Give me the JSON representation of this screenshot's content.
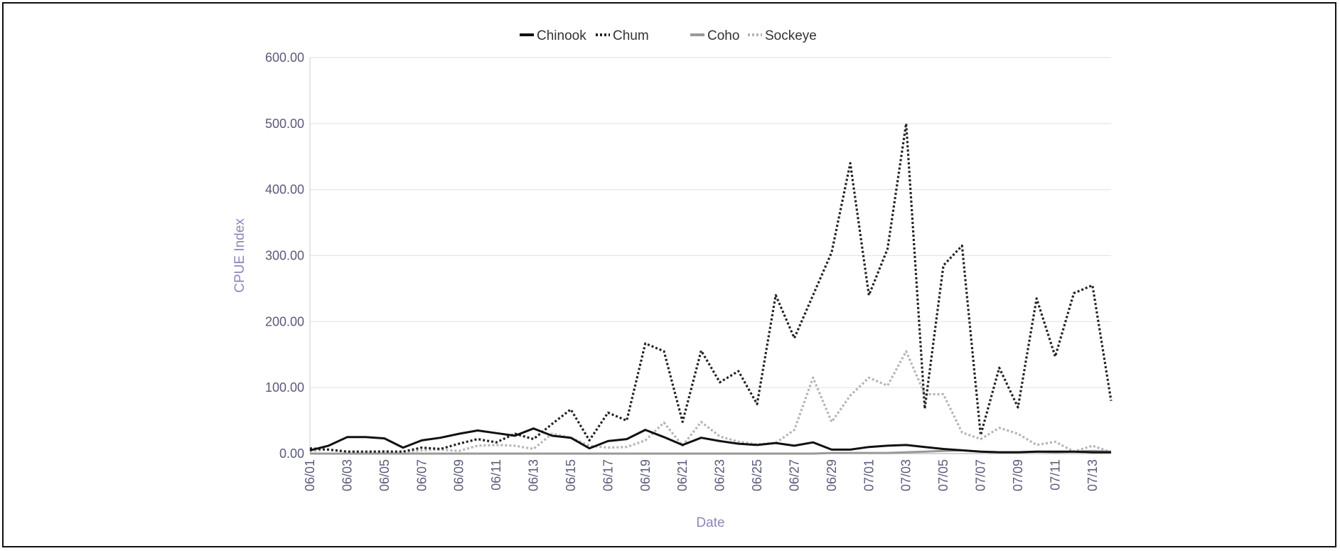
{
  "chart_data": {
    "type": "line",
    "title": "",
    "xlabel": "Date",
    "ylabel": "CPUE Index",
    "ylim": [
      0,
      600
    ],
    "y_ticks": [
      "0.00",
      "100.00",
      "200.00",
      "300.00",
      "400.00",
      "500.00",
      "600.00"
    ],
    "x_tick_labels": [
      "06/01",
      "06/03",
      "06/05",
      "06/07",
      "06/09",
      "06/11",
      "06/13",
      "06/15",
      "06/17",
      "06/19",
      "06/21",
      "06/23",
      "06/25",
      "06/27",
      "06/29",
      "07/01",
      "07/03",
      "07/05",
      "07/07",
      "07/09",
      "07/11",
      "07/13"
    ],
    "grid": true,
    "legend_position": "top",
    "x": [
      "06/01",
      "06/02",
      "06/03",
      "06/04",
      "06/05",
      "06/06",
      "06/07",
      "06/08",
      "06/09",
      "06/10",
      "06/11",
      "06/12",
      "06/13",
      "06/14",
      "06/15",
      "06/16",
      "06/17",
      "06/18",
      "06/19",
      "06/20",
      "06/21",
      "06/22",
      "06/23",
      "06/24",
      "06/25",
      "06/26",
      "06/27",
      "06/28",
      "06/29",
      "06/30",
      "07/01",
      "07/02",
      "07/03",
      "07/04",
      "07/05",
      "07/06",
      "07/07",
      "07/08",
      "07/09",
      "07/10",
      "07/11",
      "07/12",
      "07/13",
      "07/14"
    ],
    "series": [
      {
        "name": "Chinook",
        "color": "#111111",
        "style": "solid",
        "values": [
          5,
          12,
          25,
          25,
          23,
          9,
          20,
          24,
          30,
          35,
          31,
          27,
          38,
          27,
          24,
          8,
          19,
          22,
          36,
          25,
          13,
          24,
          19,
          15,
          13,
          16,
          12,
          17,
          6,
          6,
          10,
          12,
          13,
          10,
          7,
          5,
          3,
          2,
          2,
          3,
          3,
          3,
          2,
          2
        ]
      },
      {
        "name": "Chum",
        "color": "#222222",
        "style": "dotted",
        "values": [
          8,
          6,
          3,
          3,
          3,
          3,
          9,
          7,
          15,
          22,
          17,
          30,
          22,
          45,
          67,
          20,
          62,
          50,
          167,
          155,
          48,
          156,
          108,
          125,
          75,
          240,
          175,
          240,
          305,
          440,
          240,
          310,
          500,
          68,
          285,
          315,
          28,
          130,
          70,
          235,
          147,
          243,
          255,
          80
        ]
      },
      {
        "name": "Coho",
        "color": "#999999",
        "style": "solid",
        "values": [
          0,
          0,
          0,
          0,
          0,
          0,
          0,
          0,
          0,
          0,
          0,
          0,
          0,
          0,
          0,
          0,
          0,
          0,
          0,
          0,
          0,
          0,
          0,
          0,
          0,
          0,
          0,
          0,
          1,
          1,
          1,
          1,
          2,
          3,
          4,
          5,
          3,
          2,
          2,
          3,
          2,
          3,
          4,
          3
        ]
      },
      {
        "name": "Sockeye",
        "color": "#b5b5b5",
        "style": "dotted",
        "values": [
          4,
          6,
          3,
          2,
          4,
          2,
          5,
          6,
          4,
          12,
          13,
          12,
          7,
          30,
          24,
          12,
          9,
          10,
          20,
          47,
          12,
          48,
          26,
          18,
          14,
          16,
          36,
          115,
          48,
          88,
          115,
          103,
          155,
          90,
          90,
          32,
          22,
          39,
          30,
          13,
          18,
          3,
          12,
          2
        ]
      }
    ]
  }
}
